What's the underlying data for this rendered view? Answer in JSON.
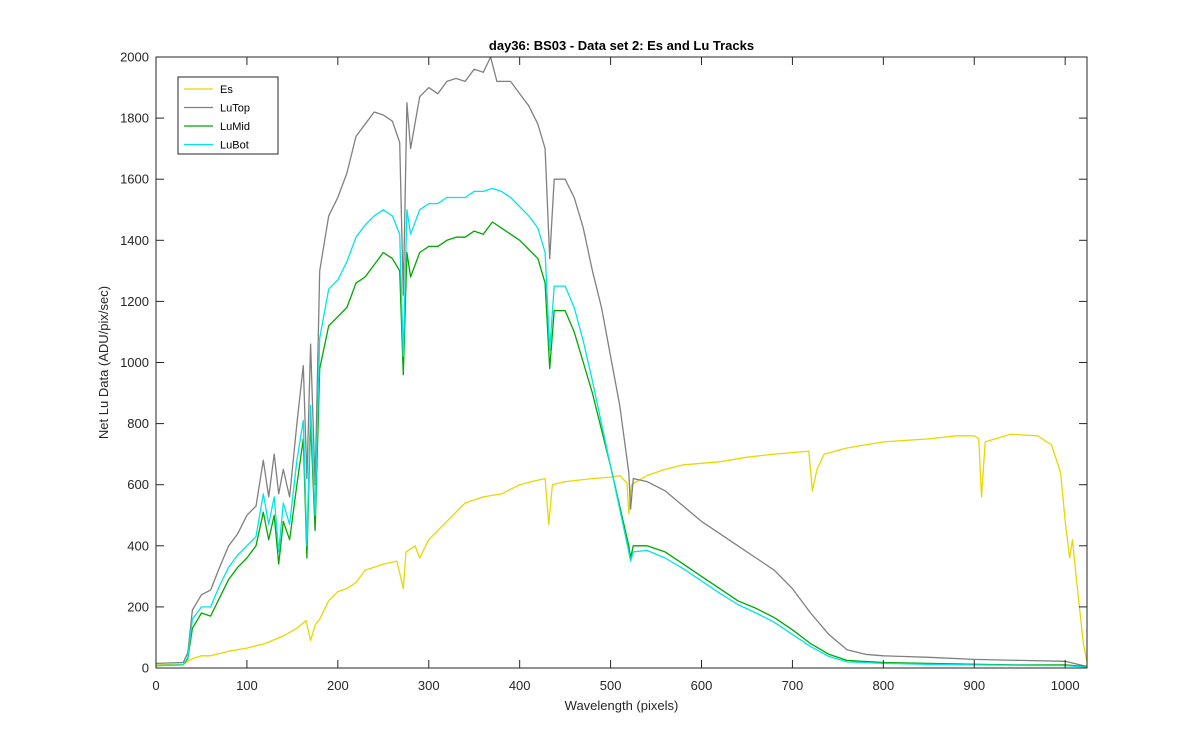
{
  "chart_data": {
    "type": "line",
    "title": "day36: BS03 - Data set 2: Es and Lu Tracks",
    "xlabel": "Wavelength (pixels)",
    "ylabel": "Net Lu Data (ADU/pix/sec)",
    "xlim": [
      0,
      1024
    ],
    "ylim": [
      0,
      2000
    ],
    "xticks": [
      0,
      100,
      200,
      300,
      400,
      500,
      600,
      700,
      800,
      900,
      1000
    ],
    "yticks": [
      0,
      200,
      400,
      600,
      800,
      1000,
      1200,
      1400,
      1600,
      1800,
      2000
    ],
    "grid": false,
    "legend_position": "top-left",
    "series": [
      {
        "name": "Es",
        "color": "#e6d800",
        "points": [
          [
            0,
            10
          ],
          [
            30,
            12
          ],
          [
            35,
            22
          ],
          [
            40,
            30
          ],
          [
            50,
            40
          ],
          [
            60,
            40
          ],
          [
            80,
            55
          ],
          [
            100,
            65
          ],
          [
            120,
            80
          ],
          [
            140,
            105
          ],
          [
            155,
            130
          ],
          [
            165,
            155
          ],
          [
            170,
            90
          ],
          [
            175,
            140
          ],
          [
            180,
            160
          ],
          [
            190,
            220
          ],
          [
            200,
            250
          ],
          [
            210,
            260
          ],
          [
            220,
            280
          ],
          [
            230,
            320
          ],
          [
            250,
            340
          ],
          [
            265,
            350
          ],
          [
            272,
            260
          ],
          [
            275,
            380
          ],
          [
            285,
            400
          ],
          [
            290,
            360
          ],
          [
            300,
            420
          ],
          [
            320,
            480
          ],
          [
            340,
            540
          ],
          [
            360,
            560
          ],
          [
            380,
            570
          ],
          [
            400,
            600
          ],
          [
            420,
            615
          ],
          [
            428,
            620
          ],
          [
            432,
            470
          ],
          [
            436,
            600
          ],
          [
            450,
            610
          ],
          [
            480,
            620
          ],
          [
            500,
            625
          ],
          [
            510,
            630
          ],
          [
            518,
            605
          ],
          [
            520,
            505
          ],
          [
            523,
            600
          ],
          [
            540,
            630
          ],
          [
            560,
            650
          ],
          [
            580,
            665
          ],
          [
            600,
            670
          ],
          [
            620,
            675
          ],
          [
            650,
            690
          ],
          [
            680,
            700
          ],
          [
            700,
            705
          ],
          [
            718,
            710
          ],
          [
            722,
            580
          ],
          [
            727,
            650
          ],
          [
            735,
            700
          ],
          [
            760,
            720
          ],
          [
            800,
            740
          ],
          [
            850,
            750
          ],
          [
            880,
            760
          ],
          [
            900,
            760
          ],
          [
            905,
            750
          ],
          [
            908,
            560
          ],
          [
            912,
            740
          ],
          [
            940,
            765
          ],
          [
            970,
            760
          ],
          [
            985,
            730
          ],
          [
            995,
            640
          ],
          [
            1000,
            480
          ],
          [
            1005,
            360
          ],
          [
            1008,
            420
          ],
          [
            1012,
            300
          ],
          [
            1020,
            80
          ],
          [
            1024,
            20
          ]
        ]
      },
      {
        "name": "LuTop",
        "color": "#808080",
        "points": [
          [
            0,
            15
          ],
          [
            30,
            18
          ],
          [
            35,
            50
          ],
          [
            40,
            190
          ],
          [
            50,
            240
          ],
          [
            60,
            255
          ],
          [
            70,
            330
          ],
          [
            80,
            400
          ],
          [
            90,
            440
          ],
          [
            100,
            500
          ],
          [
            110,
            530
          ],
          [
            118,
            680
          ],
          [
            124,
            560
          ],
          [
            130,
            700
          ],
          [
            135,
            570
          ],
          [
            140,
            650
          ],
          [
            147,
            560
          ],
          [
            155,
            800
          ],
          [
            162,
            990
          ],
          [
            166,
            620
          ],
          [
            170,
            1060
          ],
          [
            175,
            600
          ],
          [
            180,
            1300
          ],
          [
            190,
            1480
          ],
          [
            200,
            1540
          ],
          [
            210,
            1620
          ],
          [
            220,
            1740
          ],
          [
            230,
            1780
          ],
          [
            240,
            1820
          ],
          [
            250,
            1810
          ],
          [
            260,
            1790
          ],
          [
            268,
            1720
          ],
          [
            272,
            1220
          ],
          [
            276,
            1850
          ],
          [
            280,
            1700
          ],
          [
            290,
            1870
          ],
          [
            300,
            1900
          ],
          [
            310,
            1880
          ],
          [
            320,
            1920
          ],
          [
            330,
            1930
          ],
          [
            340,
            1920
          ],
          [
            350,
            1960
          ],
          [
            360,
            1950
          ],
          [
            368,
            2000
          ],
          [
            375,
            1920
          ],
          [
            390,
            1920
          ],
          [
            400,
            1880
          ],
          [
            410,
            1840
          ],
          [
            420,
            1780
          ],
          [
            428,
            1700
          ],
          [
            433,
            1340
          ],
          [
            438,
            1600
          ],
          [
            450,
            1600
          ],
          [
            460,
            1540
          ],
          [
            470,
            1440
          ],
          [
            480,
            1300
          ],
          [
            490,
            1180
          ],
          [
            500,
            1020
          ],
          [
            510,
            860
          ],
          [
            520,
            640
          ],
          [
            522,
            520
          ],
          [
            525,
            620
          ],
          [
            540,
            610
          ],
          [
            560,
            580
          ],
          [
            580,
            530
          ],
          [
            600,
            480
          ],
          [
            620,
            440
          ],
          [
            640,
            400
          ],
          [
            660,
            360
          ],
          [
            680,
            320
          ],
          [
            700,
            260
          ],
          [
            720,
            180
          ],
          [
            740,
            110
          ],
          [
            760,
            60
          ],
          [
            780,
            45
          ],
          [
            800,
            40
          ],
          [
            850,
            35
          ],
          [
            900,
            28
          ],
          [
            950,
            25
          ],
          [
            1000,
            22
          ],
          [
            1024,
            5
          ]
        ]
      },
      {
        "name": "LuMid",
        "color": "#00a800",
        "points": [
          [
            0,
            8
          ],
          [
            30,
            10
          ],
          [
            35,
            30
          ],
          [
            40,
            130
          ],
          [
            50,
            180
          ],
          [
            60,
            170
          ],
          [
            70,
            230
          ],
          [
            80,
            290
          ],
          [
            90,
            330
          ],
          [
            100,
            360
          ],
          [
            110,
            400
          ],
          [
            118,
            510
          ],
          [
            124,
            420
          ],
          [
            130,
            500
          ],
          [
            135,
            340
          ],
          [
            140,
            480
          ],
          [
            147,
            420
          ],
          [
            155,
            600
          ],
          [
            162,
            750
          ],
          [
            166,
            360
          ],
          [
            170,
            810
          ],
          [
            175,
            450
          ],
          [
            180,
            980
          ],
          [
            190,
            1120
          ],
          [
            200,
            1150
          ],
          [
            210,
            1180
          ],
          [
            220,
            1260
          ],
          [
            230,
            1280
          ],
          [
            240,
            1320
          ],
          [
            250,
            1360
          ],
          [
            260,
            1340
          ],
          [
            268,
            1300
          ],
          [
            272,
            960
          ],
          [
            276,
            1360
          ],
          [
            280,
            1280
          ],
          [
            290,
            1360
          ],
          [
            300,
            1380
          ],
          [
            310,
            1380
          ],
          [
            320,
            1400
          ],
          [
            330,
            1410
          ],
          [
            340,
            1410
          ],
          [
            350,
            1430
          ],
          [
            360,
            1420
          ],
          [
            370,
            1460
          ],
          [
            380,
            1440
          ],
          [
            390,
            1420
          ],
          [
            400,
            1400
          ],
          [
            410,
            1370
          ],
          [
            420,
            1340
          ],
          [
            428,
            1260
          ],
          [
            433,
            980
          ],
          [
            438,
            1170
          ],
          [
            450,
            1170
          ],
          [
            460,
            1100
          ],
          [
            470,
            1000
          ],
          [
            480,
            900
          ],
          [
            490,
            780
          ],
          [
            500,
            660
          ],
          [
            510,
            530
          ],
          [
            520,
            400
          ],
          [
            522,
            360
          ],
          [
            525,
            400
          ],
          [
            540,
            400
          ],
          [
            560,
            380
          ],
          [
            580,
            340
          ],
          [
            600,
            300
          ],
          [
            620,
            260
          ],
          [
            640,
            220
          ],
          [
            660,
            195
          ],
          [
            680,
            165
          ],
          [
            700,
            125
          ],
          [
            720,
            80
          ],
          [
            740,
            45
          ],
          [
            760,
            25
          ],
          [
            800,
            18
          ],
          [
            850,
            15
          ],
          [
            900,
            12
          ],
          [
            950,
            10
          ],
          [
            1000,
            10
          ],
          [
            1024,
            5
          ]
        ]
      },
      {
        "name": "LuBot",
        "color": "#00e5e5",
        "points": [
          [
            0,
            8
          ],
          [
            30,
            10
          ],
          [
            35,
            35
          ],
          [
            40,
            160
          ],
          [
            50,
            200
          ],
          [
            60,
            200
          ],
          [
            70,
            270
          ],
          [
            80,
            330
          ],
          [
            90,
            370
          ],
          [
            100,
            400
          ],
          [
            110,
            430
          ],
          [
            118,
            570
          ],
          [
            124,
            470
          ],
          [
            130,
            560
          ],
          [
            135,
            380
          ],
          [
            140,
            540
          ],
          [
            147,
            470
          ],
          [
            155,
            680
          ],
          [
            162,
            810
          ],
          [
            166,
            400
          ],
          [
            170,
            860
          ],
          [
            175,
            500
          ],
          [
            180,
            1080
          ],
          [
            190,
            1240
          ],
          [
            200,
            1270
          ],
          [
            210,
            1330
          ],
          [
            220,
            1410
          ],
          [
            230,
            1450
          ],
          [
            240,
            1480
          ],
          [
            250,
            1500
          ],
          [
            260,
            1480
          ],
          [
            268,
            1420
          ],
          [
            272,
            1020
          ],
          [
            276,
            1500
          ],
          [
            280,
            1420
          ],
          [
            290,
            1500
          ],
          [
            300,
            1520
          ],
          [
            310,
            1520
          ],
          [
            320,
            1540
          ],
          [
            330,
            1540
          ],
          [
            340,
            1540
          ],
          [
            350,
            1560
          ],
          [
            360,
            1560
          ],
          [
            370,
            1570
          ],
          [
            380,
            1560
          ],
          [
            390,
            1540
          ],
          [
            400,
            1510
          ],
          [
            410,
            1480
          ],
          [
            420,
            1440
          ],
          [
            428,
            1360
          ],
          [
            433,
            1040
          ],
          [
            438,
            1250
          ],
          [
            450,
            1250
          ],
          [
            460,
            1180
          ],
          [
            470,
            1070
          ],
          [
            480,
            940
          ],
          [
            490,
            800
          ],
          [
            500,
            660
          ],
          [
            510,
            520
          ],
          [
            520,
            380
          ],
          [
            522,
            350
          ],
          [
            525,
            380
          ],
          [
            540,
            385
          ],
          [
            560,
            360
          ],
          [
            580,
            325
          ],
          [
            600,
            285
          ],
          [
            620,
            245
          ],
          [
            640,
            208
          ],
          [
            660,
            180
          ],
          [
            680,
            150
          ],
          [
            700,
            110
          ],
          [
            720,
            70
          ],
          [
            740,
            38
          ],
          [
            760,
            20
          ],
          [
            800,
            15
          ],
          [
            850,
            12
          ],
          [
            900,
            10
          ],
          [
            950,
            9
          ],
          [
            1000,
            8
          ],
          [
            1024,
            3
          ]
        ]
      }
    ]
  }
}
